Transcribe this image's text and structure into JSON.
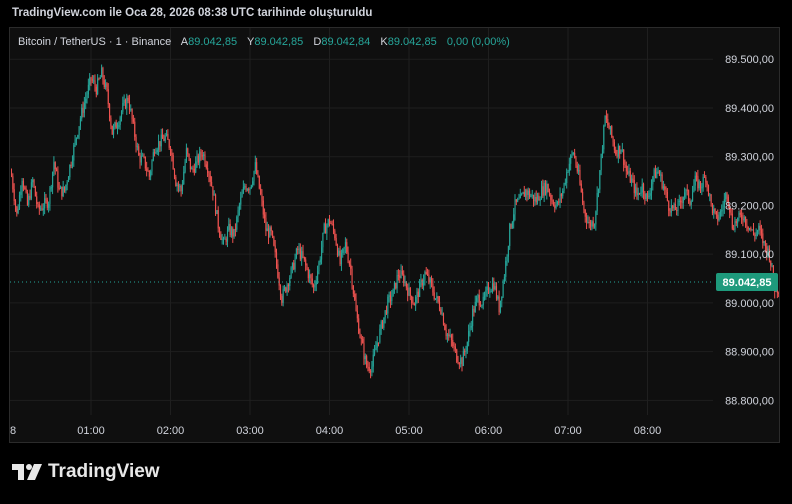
{
  "caption": "TradingView.com ile Oca 28, 2026 08:38 UTC tarihinde oluşturuldu",
  "legend": {
    "symbol": "Bitcoin / TetherUS · 1 · Binance",
    "o_label": "A",
    "o_value": "89.042,85",
    "h_label": "Y",
    "h_value": "89.042,85",
    "l_label": "D",
    "l_value": "89.042,84",
    "c_label": "K",
    "c_value": "89.042,85",
    "change": "0,00 (0,00%)"
  },
  "brand": {
    "name": "TradingView",
    "logo_icon": "tradingview-logo-icon"
  },
  "colors": {
    "up": "#26a69a",
    "down": "#ef5350",
    "price_tag": "#1e9a7c",
    "text": "#d1d4dc",
    "grid": "#1f1f1f"
  },
  "chart_data": {
    "type": "candlestick",
    "symbol": "Bitcoin / TetherUS",
    "interval": "1",
    "exchange": "Binance",
    "x_tick_labels": [
      "8",
      "01:00",
      "02:00",
      "03:00",
      "04:00",
      "05:00",
      "06:00",
      "07:00",
      "08:00"
    ],
    "y_tick_labels": [
      "89.500,00",
      "89.400,00",
      "89.300,00",
      "89.200,00",
      "89.100,00",
      "89.000,00",
      "88.900,00",
      "88.800,00"
    ],
    "y_tick_values": [
      89500,
      89400,
      89300,
      89200,
      89100,
      89000,
      88900,
      88800
    ],
    "ylim": [
      88770,
      89560
    ],
    "last_price": 89042.85,
    "last_price_label": "89.042,85",
    "grid": true,
    "close_path": [
      [
        0,
        89260
      ],
      [
        4,
        89180
      ],
      [
        8,
        89260
      ],
      [
        12,
        89200
      ],
      [
        16,
        89250
      ],
      [
        20,
        89190
      ],
      [
        24,
        89200
      ],
      [
        28,
        89210
      ],
      [
        32,
        89290
      ],
      [
        36,
        89230
      ],
      [
        40,
        89230
      ],
      [
        44,
        89280
      ],
      [
        48,
        89330
      ],
      [
        52,
        89380
      ],
      [
        56,
        89420
      ],
      [
        60,
        89460
      ],
      [
        64,
        89440
      ],
      [
        68,
        89470
      ],
      [
        72,
        89430
      ],
      [
        76,
        89350
      ],
      [
        80,
        89370
      ],
      [
        84,
        89400
      ],
      [
        88,
        89420
      ],
      [
        92,
        89360
      ],
      [
        96,
        89300
      ],
      [
        100,
        89290
      ],
      [
        104,
        89260
      ],
      [
        108,
        89320
      ],
      [
        112,
        89330
      ],
      [
        116,
        89340
      ],
      [
        120,
        89320
      ],
      [
        124,
        89250
      ],
      [
        128,
        89230
      ],
      [
        132,
        89310
      ],
      [
        136,
        89270
      ],
      [
        140,
        89290
      ],
      [
        144,
        89310
      ],
      [
        148,
        89280
      ],
      [
        152,
        89230
      ],
      [
        156,
        89160
      ],
      [
        160,
        89120
      ],
      [
        164,
        89150
      ],
      [
        168,
        89140
      ],
      [
        172,
        89200
      ],
      [
        176,
        89240
      ],
      [
        180,
        89240
      ],
      [
        184,
        89280
      ],
      [
        188,
        89220
      ],
      [
        192,
        89150
      ],
      [
        196,
        89140
      ],
      [
        200,
        89080
      ],
      [
        204,
        89010
      ],
      [
        208,
        89040
      ],
      [
        212,
        89070
      ],
      [
        216,
        89110
      ],
      [
        220,
        89090
      ],
      [
        224,
        89060
      ],
      [
        228,
        89030
      ],
      [
        232,
        89080
      ],
      [
        236,
        89150
      ],
      [
        240,
        89170
      ],
      [
        244,
        89140
      ],
      [
        248,
        89080
      ],
      [
        252,
        89120
      ],
      [
        256,
        89070
      ],
      [
        260,
        88980
      ],
      [
        264,
        88920
      ],
      [
        268,
        88870
      ],
      [
        272,
        88870
      ],
      [
        276,
        88920
      ],
      [
        280,
        88960
      ],
      [
        284,
        89000
      ],
      [
        288,
        89020
      ],
      [
        292,
        89060
      ],
      [
        296,
        89050
      ],
      [
        300,
        89020
      ],
      [
        304,
        89000
      ],
      [
        308,
        89030
      ],
      [
        312,
        89060
      ],
      [
        316,
        89040
      ],
      [
        320,
        89010
      ],
      [
        324,
        88990
      ],
      [
        328,
        88940
      ],
      [
        332,
        88920
      ],
      [
        336,
        88890
      ],
      [
        340,
        88880
      ],
      [
        344,
        88920
      ],
      [
        348,
        88980
      ],
      [
        352,
        89010
      ],
      [
        356,
        89000
      ],
      [
        360,
        89030
      ],
      [
        364,
        89040
      ],
      [
        368,
        88990
      ],
      [
        372,
        89060
      ],
      [
        376,
        89150
      ],
      [
        380,
        89200
      ],
      [
        384,
        89210
      ],
      [
        388,
        89230
      ],
      [
        392,
        89220
      ],
      [
        396,
        89210
      ],
      [
        400,
        89230
      ],
      [
        404,
        89240
      ],
      [
        408,
        89210
      ],
      [
        412,
        89200
      ],
      [
        416,
        89230
      ],
      [
        420,
        89280
      ],
      [
        424,
        89310
      ],
      [
        428,
        89260
      ],
      [
        432,
        89190
      ],
      [
        436,
        89160
      ],
      [
        440,
        89170
      ],
      [
        444,
        89270
      ],
      [
        448,
        89380
      ],
      [
        452,
        89350
      ],
      [
        456,
        89310
      ],
      [
        460,
        89320
      ],
      [
        464,
        89270
      ],
      [
        468,
        89250
      ],
      [
        472,
        89220
      ],
      [
        476,
        89240
      ],
      [
        480,
        89210
      ],
      [
        484,
        89260
      ],
      [
        488,
        89270
      ],
      [
        492,
        89240
      ],
      [
        496,
        89200
      ],
      [
        500,
        89190
      ],
      [
        504,
        89200
      ],
      [
        508,
        89230
      ],
      [
        512,
        89210
      ],
      [
        516,
        89250
      ],
      [
        520,
        89240
      ],
      [
        524,
        89260
      ],
      [
        528,
        89200
      ],
      [
        532,
        89170
      ],
      [
        536,
        89190
      ],
      [
        540,
        89230
      ],
      [
        544,
        89160
      ],
      [
        548,
        89170
      ],
      [
        552,
        89180
      ],
      [
        556,
        89160
      ],
      [
        560,
        89140
      ],
      [
        564,
        89150
      ],
      [
        568,
        89120
      ],
      [
        572,
        89100
      ],
      [
        576,
        89030
      ],
      [
        580,
        89030
      ],
      [
        584,
        89042.85
      ]
    ]
  }
}
